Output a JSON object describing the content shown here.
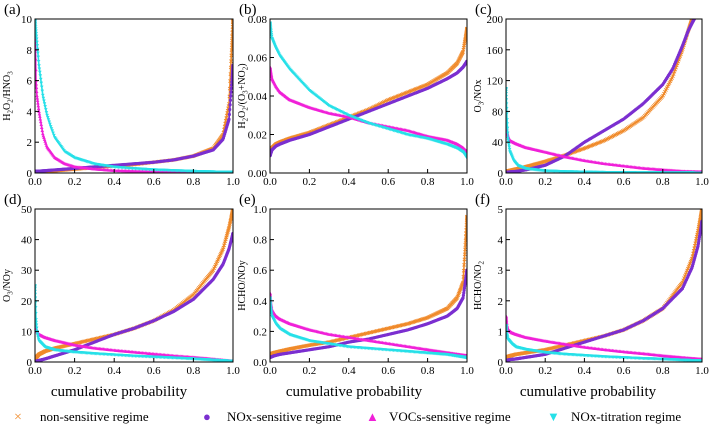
{
  "colors": {
    "non_sensitive": "#f08a2a",
    "nox_sensitive": "#7b2fd0",
    "vocs_sensitive": "#f020d8",
    "nox_titration": "#26e0e8"
  },
  "xlabel": "cumulative probability",
  "legend": [
    {
      "marker": "×",
      "label": "non-sensitive regime",
      "color_key": "non_sensitive"
    },
    {
      "marker": "●",
      "label": "NOx-sensitive regime",
      "color_key": "nox_sensitive"
    },
    {
      "marker": "▲",
      "label": "VOCs-sensitive regime",
      "color_key": "vocs_sensitive"
    },
    {
      "marker": "▼",
      "label": "NOx-titration regime",
      "color_key": "nox_titration"
    }
  ],
  "chart_data": [
    {
      "type": "line",
      "panel_label": "(a)",
      "ylabel": "H2O2/HNO3",
      "ylim": [
        0,
        10
      ],
      "yticks": [
        "0",
        "2",
        "4",
        "6",
        "8",
        "10"
      ],
      "xlim": [
        0,
        1
      ],
      "xticks": [
        "0.0",
        "0.2",
        "0.4",
        "0.6",
        "0.8",
        "1.0"
      ],
      "series": [
        {
          "key": "non_sensitive",
          "x": [
            0,
            0.05,
            0.1,
            0.2,
            0.3,
            0.4,
            0.5,
            0.6,
            0.7,
            0.8,
            0.9,
            0.95,
            0.98,
            1.0
          ],
          "y": [
            0.05,
            0.1,
            0.15,
            0.25,
            0.35,
            0.45,
            0.55,
            0.7,
            0.85,
            1.1,
            1.6,
            2.5,
            4.5,
            10
          ]
        },
        {
          "key": "nox_sensitive",
          "x": [
            0,
            0.05,
            0.1,
            0.2,
            0.3,
            0.4,
            0.5,
            0.6,
            0.7,
            0.8,
            0.9,
            0.95,
            0.98,
            1.0
          ],
          "y": [
            0.1,
            0.15,
            0.2,
            0.3,
            0.4,
            0.5,
            0.6,
            0.7,
            0.85,
            1.1,
            1.5,
            2.2,
            3.5,
            7
          ]
        },
        {
          "key": "vocs_sensitive",
          "x": [
            0,
            0.005,
            0.01,
            0.02,
            0.04,
            0.06,
            0.1,
            0.15,
            0.2,
            0.3,
            0.4,
            0.6,
            0.8,
            1.0
          ],
          "y": [
            10,
            6,
            5,
            4,
            2.5,
            1.7,
            1.0,
            0.6,
            0.4,
            0.25,
            0.15,
            0.08,
            0.04,
            0.01
          ]
        },
        {
          "key": "nox_titration",
          "x": [
            0,
            0.01,
            0.02,
            0.04,
            0.06,
            0.08,
            0.1,
            0.15,
            0.2,
            0.3,
            0.4,
            0.5,
            0.6,
            0.8,
            1.0
          ],
          "y": [
            10,
            8.5,
            7,
            5,
            3.8,
            3.0,
            2.3,
            1.4,
            1.0,
            0.6,
            0.4,
            0.3,
            0.22,
            0.12,
            0.05
          ]
        }
      ]
    },
    {
      "type": "line",
      "panel_label": "(b)",
      "ylabel": "H2O2/(O3+NO2)",
      "ylim": [
        0,
        0.08
      ],
      "yticks": [
        "0.00",
        "0.02",
        "0.04",
        "0.06",
        "0.08"
      ],
      "xlim": [
        0,
        1
      ],
      "xticks": [
        "0.0",
        "0.2",
        "0.4",
        "0.6",
        "0.8",
        "1.0"
      ],
      "series": [
        {
          "key": "non_sensitive",
          "x": [
            0,
            0.01,
            0.03,
            0.05,
            0.1,
            0.2,
            0.3,
            0.4,
            0.5,
            0.6,
            0.7,
            0.8,
            0.9,
            0.95,
            0.98,
            1.0
          ],
          "y": [
            0.011,
            0.013,
            0.015,
            0.016,
            0.018,
            0.021,
            0.025,
            0.029,
            0.033,
            0.038,
            0.042,
            0.046,
            0.052,
            0.057,
            0.063,
            0.075
          ]
        },
        {
          "key": "nox_sensitive",
          "x": [
            0,
            0.01,
            0.03,
            0.05,
            0.1,
            0.2,
            0.3,
            0.4,
            0.5,
            0.6,
            0.7,
            0.8,
            0.9,
            0.95,
            0.98,
            1.0
          ],
          "y": [
            0.009,
            0.012,
            0.014,
            0.015,
            0.017,
            0.02,
            0.024,
            0.028,
            0.032,
            0.036,
            0.04,
            0.044,
            0.049,
            0.052,
            0.055,
            0.058
          ]
        },
        {
          "key": "vocs_sensitive",
          "x": [
            0,
            0.01,
            0.03,
            0.05,
            0.1,
            0.2,
            0.3,
            0.4,
            0.5,
            0.6,
            0.7,
            0.8,
            0.9,
            0.95,
            0.98,
            1.0
          ],
          "y": [
            0.055,
            0.049,
            0.045,
            0.042,
            0.038,
            0.034,
            0.031,
            0.029,
            0.026,
            0.024,
            0.022,
            0.019,
            0.017,
            0.015,
            0.013,
            0.011
          ]
        },
        {
          "key": "nox_titration",
          "x": [
            0,
            0.01,
            0.03,
            0.05,
            0.1,
            0.2,
            0.3,
            0.4,
            0.5,
            0.6,
            0.7,
            0.8,
            0.9,
            0.95,
            0.98,
            1.0
          ],
          "y": [
            0.078,
            0.07,
            0.065,
            0.061,
            0.054,
            0.043,
            0.035,
            0.03,
            0.026,
            0.023,
            0.02,
            0.018,
            0.015,
            0.013,
            0.011,
            0.008
          ]
        }
      ]
    },
    {
      "type": "line",
      "panel_label": "(c)",
      "ylabel": "O3/NOx",
      "ylim": [
        0,
        200
      ],
      "yticks": [
        "0",
        "40",
        "80",
        "120",
        "160",
        "200"
      ],
      "xlim": [
        0,
        1
      ],
      "xticks": [
        "0.0",
        "0.2",
        "0.4",
        "0.6",
        "0.8",
        "1.0"
      ],
      "series": [
        {
          "key": "non_sensitive",
          "x": [
            0,
            0.05,
            0.1,
            0.2,
            0.3,
            0.4,
            0.5,
            0.6,
            0.7,
            0.8,
            0.85,
            0.9,
            0.93,
            0.95
          ],
          "y": [
            2,
            5,
            8,
            15,
            23,
            32,
            42,
            55,
            72,
            100,
            125,
            160,
            185,
            200
          ]
        },
        {
          "key": "nox_sensitive",
          "x": [
            0,
            0.05,
            0.1,
            0.2,
            0.3,
            0.4,
            0.5,
            0.6,
            0.7,
            0.8,
            0.85,
            0.9,
            0.93,
            0.96
          ],
          "y": [
            1,
            2,
            4,
            10,
            22,
            40,
            55,
            70,
            90,
            115,
            135,
            165,
            185,
            200
          ]
        },
        {
          "key": "vocs_sensitive",
          "x": [
            0,
            0.005,
            0.01,
            0.02,
            0.05,
            0.1,
            0.2,
            0.3,
            0.4,
            0.5,
            0.6,
            0.7,
            0.8,
            0.9,
            1.0
          ],
          "y": [
            70,
            55,
            48,
            42,
            38,
            33,
            27,
            21,
            16,
            12,
            9,
            6,
            4,
            2,
            1
          ]
        },
        {
          "key": "nox_titration",
          "x": [
            0,
            0.005,
            0.01,
            0.02,
            0.04,
            0.06,
            0.1,
            0.2,
            0.3,
            0.5,
            0.7,
            1.0
          ],
          "y": [
            110,
            70,
            45,
            28,
            16,
            10,
            6,
            3,
            2,
            1,
            0.6,
            0.3
          ]
        }
      ]
    },
    {
      "type": "line",
      "panel_label": "(d)",
      "ylabel": "O3/NOy",
      "ylim": [
        0,
        50
      ],
      "yticks": [
        "0",
        "10",
        "20",
        "30",
        "40",
        "50"
      ],
      "xlim": [
        0,
        1
      ],
      "xticks": [
        "0.0",
        "0.2",
        "0.4",
        "0.6",
        "0.8",
        "1.0"
      ],
      "series": [
        {
          "key": "non_sensitive",
          "x": [
            0,
            0.02,
            0.05,
            0.1,
            0.2,
            0.3,
            0.4,
            0.5,
            0.6,
            0.7,
            0.8,
            0.9,
            0.95,
            0.98,
            1.0
          ],
          "y": [
            1,
            2.5,
            3.5,
            4.5,
            6,
            7.5,
            9,
            11,
            13.5,
            17,
            22,
            30,
            37,
            44,
            50
          ]
        },
        {
          "key": "nox_sensitive",
          "x": [
            0,
            0.02,
            0.05,
            0.1,
            0.2,
            0.3,
            0.4,
            0.5,
            0.6,
            0.7,
            0.8,
            0.9,
            0.95,
            0.98,
            1.0
          ],
          "y": [
            0.2,
            0.5,
            1,
            2,
            4,
            6.5,
            9,
            11,
            13.5,
            16.5,
            20.5,
            27,
            32,
            37,
            42
          ]
        },
        {
          "key": "vocs_sensitive",
          "x": [
            0,
            0.01,
            0.02,
            0.05,
            0.1,
            0.2,
            0.3,
            0.4,
            0.5,
            0.6,
            0.7,
            0.8,
            0.9,
            1.0
          ],
          "y": [
            12,
            10,
            9,
            8,
            7,
            5.5,
            4.5,
            3.8,
            3.2,
            2.6,
            2,
            1.5,
            0.9,
            0.2
          ]
        },
        {
          "key": "nox_titration",
          "x": [
            0,
            0.005,
            0.01,
            0.02,
            0.05,
            0.1,
            0.2,
            0.3,
            0.4,
            0.5,
            0.6,
            0.7,
            0.8,
            0.9,
            1.0
          ],
          "y": [
            25,
            14,
            10,
            7,
            5,
            4,
            3.3,
            2.8,
            2.4,
            2,
            1.7,
            1.4,
            1.1,
            0.7,
            0.3
          ]
        }
      ]
    },
    {
      "type": "line",
      "panel_label": "(e)",
      "ylabel": "HCHO/NOy",
      "ylim": [
        0,
        1.0
      ],
      "yticks": [
        "0.0",
        "0.2",
        "0.4",
        "0.6",
        "0.8",
        "1.0"
      ],
      "xlim": [
        0,
        1
      ],
      "xticks": [
        "0.0",
        "0.2",
        "0.4",
        "0.6",
        "0.8",
        "1.0"
      ],
      "series": [
        {
          "key": "non_sensitive",
          "x": [
            0,
            0.02,
            0.05,
            0.1,
            0.2,
            0.3,
            0.4,
            0.5,
            0.6,
            0.7,
            0.8,
            0.9,
            0.95,
            0.98,
            1.0
          ],
          "y": [
            0.05,
            0.06,
            0.07,
            0.085,
            0.11,
            0.13,
            0.16,
            0.19,
            0.22,
            0.25,
            0.29,
            0.35,
            0.42,
            0.52,
            0.95
          ]
        },
        {
          "key": "nox_sensitive",
          "x": [
            0,
            0.02,
            0.05,
            0.1,
            0.2,
            0.3,
            0.4,
            0.5,
            0.6,
            0.7,
            0.8,
            0.9,
            0.95,
            0.98,
            1.0
          ],
          "y": [
            0.03,
            0.04,
            0.05,
            0.06,
            0.08,
            0.1,
            0.13,
            0.15,
            0.18,
            0.21,
            0.25,
            0.3,
            0.35,
            0.42,
            0.6
          ]
        },
        {
          "key": "vocs_sensitive",
          "x": [
            0,
            0.005,
            0.01,
            0.03,
            0.05,
            0.1,
            0.2,
            0.3,
            0.4,
            0.5,
            0.6,
            0.7,
            0.8,
            0.9,
            1.0
          ],
          "y": [
            0.45,
            0.38,
            0.34,
            0.3,
            0.28,
            0.25,
            0.21,
            0.18,
            0.16,
            0.14,
            0.12,
            0.1,
            0.08,
            0.06,
            0.04
          ]
        },
        {
          "key": "nox_titration",
          "x": [
            0,
            0.005,
            0.01,
            0.03,
            0.05,
            0.1,
            0.2,
            0.3,
            0.4,
            0.5,
            0.6,
            0.7,
            0.8,
            0.9,
            1.0
          ],
          "y": [
            0.42,
            0.35,
            0.3,
            0.25,
            0.22,
            0.18,
            0.14,
            0.12,
            0.1,
            0.09,
            0.08,
            0.07,
            0.06,
            0.05,
            0.03
          ]
        }
      ]
    },
    {
      "type": "line",
      "panel_label": "(f)",
      "ylabel": "HCHO/NO2",
      "ylim": [
        0,
        5
      ],
      "yticks": [
        "0",
        "1",
        "2",
        "3",
        "4",
        "5"
      ],
      "xlim": [
        0,
        1
      ],
      "xticks": [
        "0.0",
        "0.2",
        "0.4",
        "0.6",
        "0.8",
        "1.0"
      ],
      "series": [
        {
          "key": "non_sensitive",
          "x": [
            0,
            0.02,
            0.05,
            0.1,
            0.2,
            0.3,
            0.4,
            0.5,
            0.6,
            0.7,
            0.8,
            0.9,
            0.95,
            0.98,
            1.0
          ],
          "y": [
            0.15,
            0.2,
            0.25,
            0.3,
            0.4,
            0.55,
            0.7,
            0.85,
            1.05,
            1.35,
            1.75,
            2.6,
            3.4,
            4.3,
            5
          ]
        },
        {
          "key": "nox_sensitive",
          "x": [
            0,
            0.02,
            0.05,
            0.1,
            0.2,
            0.3,
            0.4,
            0.5,
            0.6,
            0.7,
            0.8,
            0.9,
            0.95,
            0.98,
            1.0
          ],
          "y": [
            0.05,
            0.08,
            0.1,
            0.15,
            0.25,
            0.45,
            0.65,
            0.85,
            1.05,
            1.35,
            1.75,
            2.4,
            3.1,
            3.8,
            4.6
          ]
        },
        {
          "key": "vocs_sensitive",
          "x": [
            0,
            0.005,
            0.01,
            0.03,
            0.05,
            0.1,
            0.2,
            0.3,
            0.4,
            0.5,
            0.6,
            0.7,
            0.8,
            0.9,
            1.0
          ],
          "y": [
            1.5,
            1.2,
            1.05,
            0.95,
            0.9,
            0.8,
            0.68,
            0.58,
            0.48,
            0.4,
            0.33,
            0.27,
            0.2,
            0.14,
            0.08
          ]
        },
        {
          "key": "nox_titration",
          "x": [
            0,
            0.005,
            0.01,
            0.03,
            0.05,
            0.1,
            0.2,
            0.3,
            0.4,
            0.5,
            0.6,
            0.7,
            0.8,
            0.9,
            1.0
          ],
          "y": [
            1.2,
            0.9,
            0.75,
            0.6,
            0.5,
            0.42,
            0.32,
            0.26,
            0.22,
            0.18,
            0.15,
            0.12,
            0.1,
            0.07,
            0.04
          ]
        }
      ]
    }
  ]
}
